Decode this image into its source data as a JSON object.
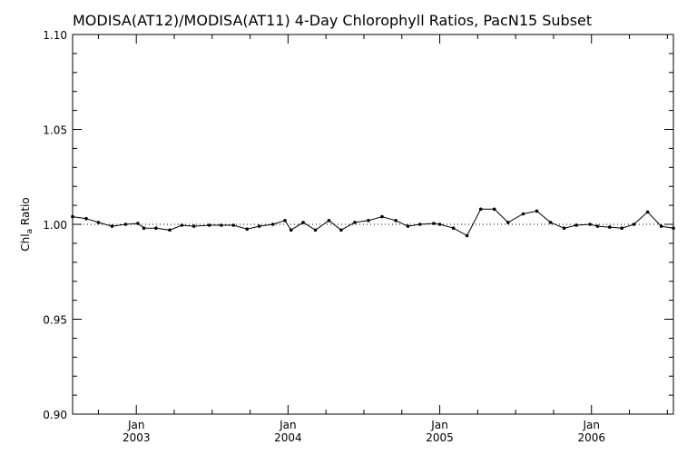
{
  "chart_data": {
    "type": "line",
    "title": "MODISA(AT12)/MODISA(AT11) 4-Day Chlorophyll Ratios, PacN15 Subset",
    "ylabel": {
      "main": "Chl",
      "subscript": "a",
      "suffix": " Ratio"
    },
    "xlabel": "",
    "ylim": [
      0.9,
      1.1
    ],
    "xlim": [
      2002.58,
      2006.54
    ],
    "y_ticks": [
      "1.10",
      "1.05",
      "1.00",
      "0.95",
      "0.90"
    ],
    "y_tick_values": [
      1.1,
      1.05,
      1.0,
      0.95,
      0.9
    ],
    "x_ticks": [
      {
        "month": "Jan",
        "year": "2003",
        "value": 2003.0
      },
      {
        "month": "Jan",
        "year": "2004",
        "value": 2004.0
      },
      {
        "month": "Jan",
        "year": "2005",
        "value": 2005.0
      },
      {
        "month": "Jan",
        "year": "2006",
        "value": 2006.0
      }
    ],
    "reference_line": 1.0,
    "grid": false,
    "colors": {
      "line": "#000000",
      "marker": "#000000",
      "reference": "#000000"
    },
    "series": [
      {
        "x": [
          2002.58,
          2002.67,
          2002.75,
          2002.84,
          2002.93,
          2003.01,
          2003.05,
          2003.13,
          2003.22,
          2003.3,
          2003.38,
          2003.48,
          2003.56,
          2003.64,
          2003.73,
          2003.81,
          2003.9,
          2003.98,
          2004.02,
          2004.1,
          2004.18,
          2004.27,
          2004.35,
          2004.44,
          2004.53,
          2004.62,
          2004.71,
          2004.79,
          2004.87,
          2004.96,
          2005.0,
          2005.09,
          2005.18,
          2005.27,
          2005.36,
          2005.45,
          2005.55,
          2005.64,
          2005.73,
          2005.82,
          2005.9,
          2005.99,
          2006.04,
          2006.12,
          2006.2,
          2006.28,
          2006.37,
          2006.46,
          2006.54
        ],
        "values": [
          1.004,
          1.003,
          1.001,
          0.999,
          1.0,
          1.0005,
          0.998,
          0.998,
          0.997,
          0.9995,
          0.999,
          0.9995,
          0.9995,
          0.9995,
          0.9975,
          0.999,
          1.0,
          1.002,
          0.997,
          1.001,
          0.997,
          1.002,
          0.997,
          1.001,
          1.002,
          1.004,
          1.002,
          0.999,
          1.0,
          1.0005,
          1.0,
          0.998,
          0.994,
          1.008,
          1.008,
          1.001,
          1.0055,
          1.007,
          1.001,
          0.998,
          0.9995,
          1.0,
          0.999,
          0.9985,
          0.998,
          1.0,
          1.0065,
          0.999,
          0.998
        ]
      }
    ]
  }
}
